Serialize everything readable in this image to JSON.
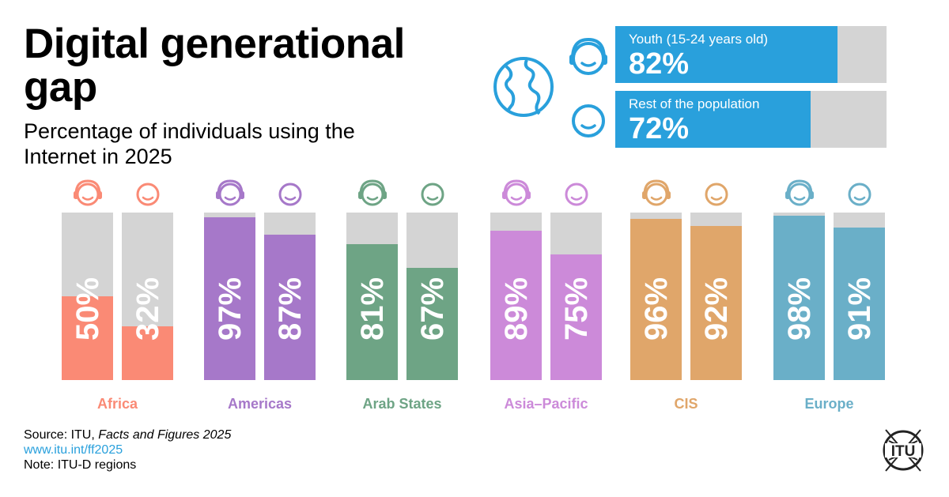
{
  "header": {
    "title": "Digital generational gap",
    "subtitle": "Percentage of individuals using the Internet in 2025"
  },
  "legend": [
    {
      "label": "Youth (15-24 years old)",
      "value_text": "82%",
      "value": 82
    },
    {
      "label": "Rest of the population",
      "value_text": "72%",
      "value": 72
    }
  ],
  "colors": {
    "legend_blue": "#29a0dc",
    "track_gray": "#d4d4d4",
    "Africa": "#fa8a75",
    "Americas": "#a678c9",
    "Arab States": "#6ea485",
    "Asia–Pacific": "#cc8ad9",
    "CIS": "#e0a66a",
    "Europe": "#6aafc8"
  },
  "chart_data": {
    "type": "bar",
    "categories": [
      "Africa",
      "Americas",
      "Arab States",
      "Asia–Pacific",
      "CIS",
      "Europe"
    ],
    "series": [
      {
        "name": "Youth (15-24 years old)",
        "values": [
          50,
          97,
          81,
          89,
          96,
          98
        ]
      },
      {
        "name": "Rest of the population",
        "values": [
          32,
          87,
          67,
          75,
          92,
          91
        ]
      }
    ],
    "ylim": [
      0,
      100
    ],
    "value_labels": [
      [
        "50%",
        "32%"
      ],
      [
        "97%",
        "87%"
      ],
      [
        "81%",
        "67%"
      ],
      [
        "89%",
        "75%"
      ],
      [
        "96%",
        "92%"
      ],
      [
        "98%",
        "91%"
      ]
    ]
  },
  "footer": {
    "source_prefix": "Source: ITU, ",
    "source_title": "Facts and Figures 2025",
    "url": "www.itu.int/ff2025",
    "note": "Note: ITU-D regions"
  },
  "logo": {
    "text": "ITU",
    "icon": "itu-logo-icon"
  },
  "icons": {
    "youth": "headphones-face-icon",
    "rest": "face-icon",
    "globe": "globe-icon"
  }
}
